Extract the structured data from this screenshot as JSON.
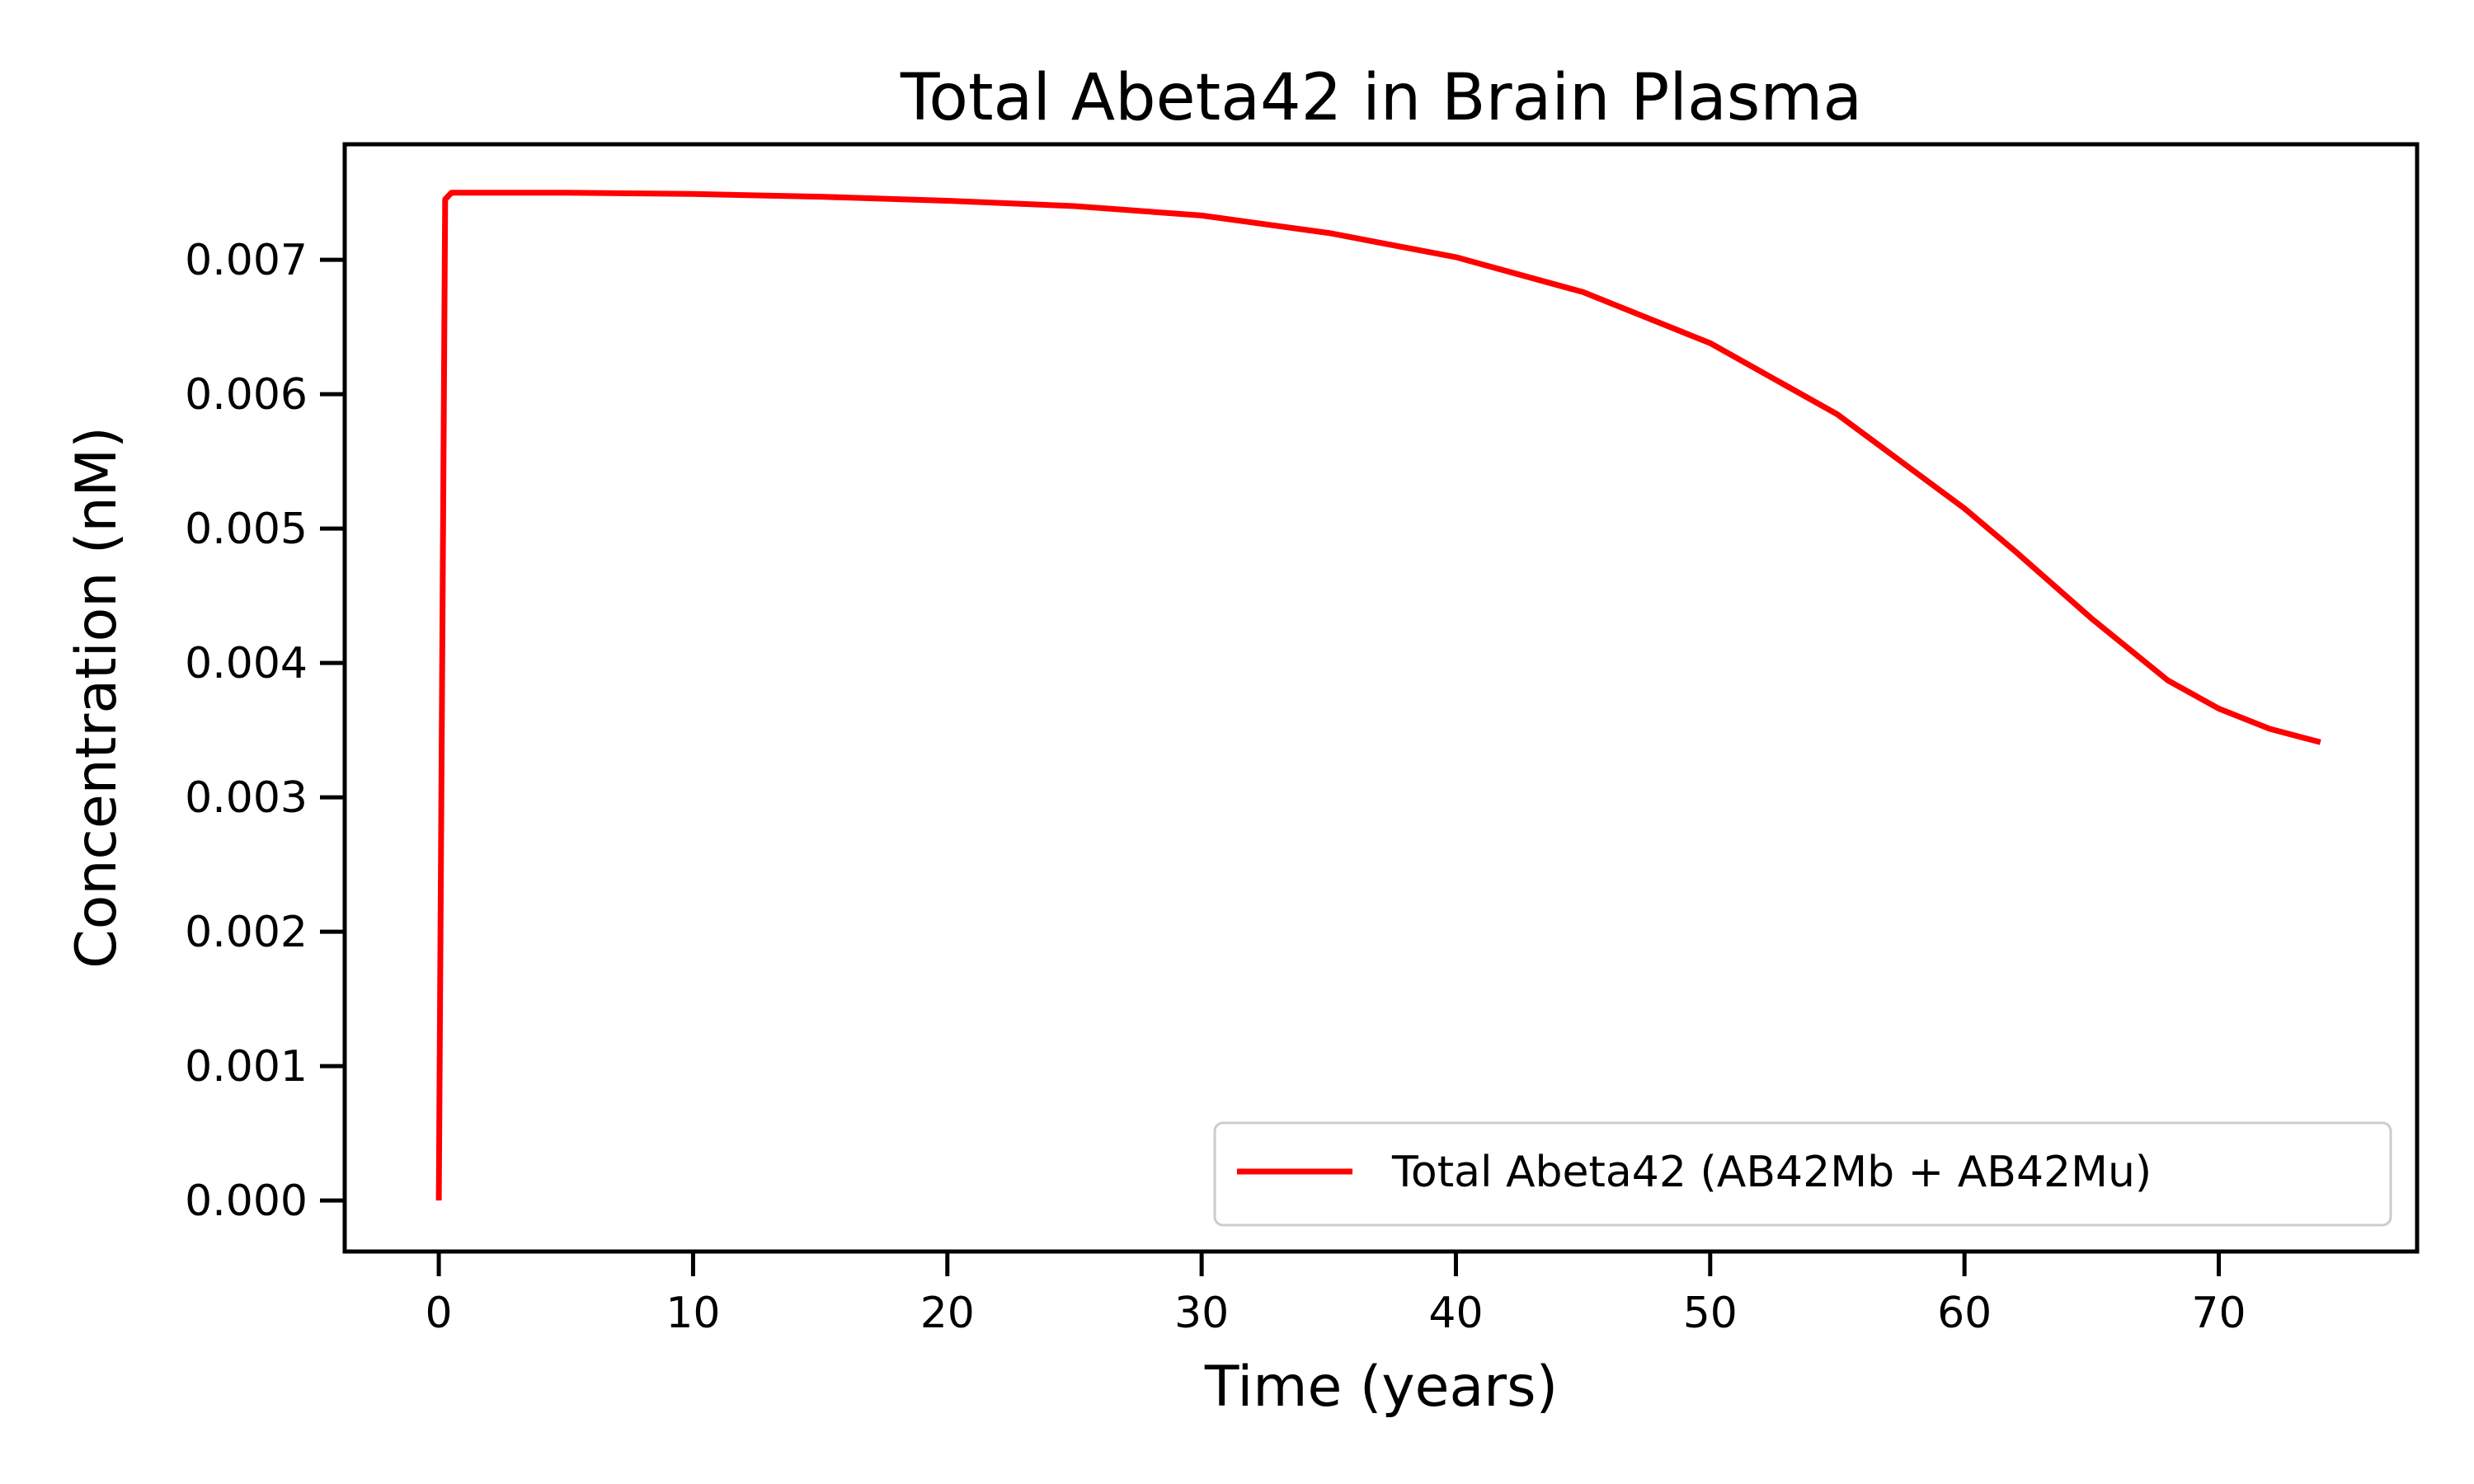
{
  "chart_data": {
    "type": "line",
    "title": "Total Abeta42 in Brain Plasma",
    "xlabel": "Time (years)",
    "ylabel": "Concentration (nM)",
    "xlim": [
      -3.7,
      77.8
    ],
    "ylim": [
      -0.00038,
      0.00786
    ],
    "xticks": [
      0,
      10,
      20,
      30,
      40,
      50,
      60,
      70
    ],
    "xtick_labels": [
      "0",
      "10",
      "20",
      "30",
      "40",
      "50",
      "60",
      "70"
    ],
    "yticks": [
      0.0,
      0.001,
      0.002,
      0.003,
      0.004,
      0.005,
      0.006,
      0.007
    ],
    "ytick_labels": [
      "0.000",
      "0.001",
      "0.002",
      "0.003",
      "0.004",
      "0.005",
      "0.006",
      "0.007"
    ],
    "grid": false,
    "legend_position": "lower-right",
    "series": [
      {
        "name": "Total Abeta42 (AB42Mb + AB42Mu)",
        "color": "#ff0000",
        "x": [
          0,
          0.25,
          0.5,
          1,
          5,
          10,
          15,
          20,
          25,
          30,
          35,
          40,
          45,
          50,
          55,
          60,
          62,
          65,
          68,
          70,
          72,
          74
        ],
        "y": [
          0.0,
          0.00745,
          0.0075,
          0.0075,
          0.0075,
          0.00749,
          0.00747,
          0.00744,
          0.0074,
          0.00733,
          0.0072,
          0.00702,
          0.00676,
          0.00638,
          0.00585,
          0.00515,
          0.00483,
          0.00433,
          0.00387,
          0.00366,
          0.00351,
          0.00341
        ]
      }
    ]
  }
}
